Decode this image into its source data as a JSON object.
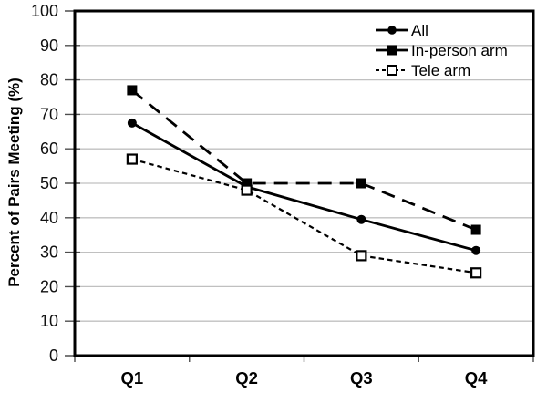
{
  "chart_data": {
    "type": "line",
    "title": "",
    "categories": [
      "Q1",
      "Q2",
      "Q3",
      "Q4"
    ],
    "series": [
      {
        "name": "All",
        "marker": "filled-circle",
        "line_style": "solid",
        "values": [
          67.5,
          49,
          39.5,
          30.5
        ]
      },
      {
        "name": "In-person arm",
        "marker": "filled-square",
        "line_style": "long-dash",
        "values": [
          77,
          50,
          50,
          36.5
        ]
      },
      {
        "name": "Tele arm",
        "marker": "open-square",
        "line_style": "short-dash",
        "values": [
          57,
          48,
          29,
          24
        ]
      }
    ],
    "xlabel": "",
    "ylabel": "Percent of Pairs Meeting (%)",
    "ylim": [
      0,
      100
    ],
    "yticks": [
      0,
      10,
      20,
      30,
      40,
      50,
      60,
      70,
      80,
      90,
      100
    ],
    "grid": "horizontal",
    "legend_position": "top-right-inside",
    "colors": {
      "line": "#000000",
      "gridline": "#c0c0c0",
      "axis_border": "#000000",
      "tick": "#4d4d4d",
      "text": "#000000",
      "background": "#ffffff"
    }
  }
}
